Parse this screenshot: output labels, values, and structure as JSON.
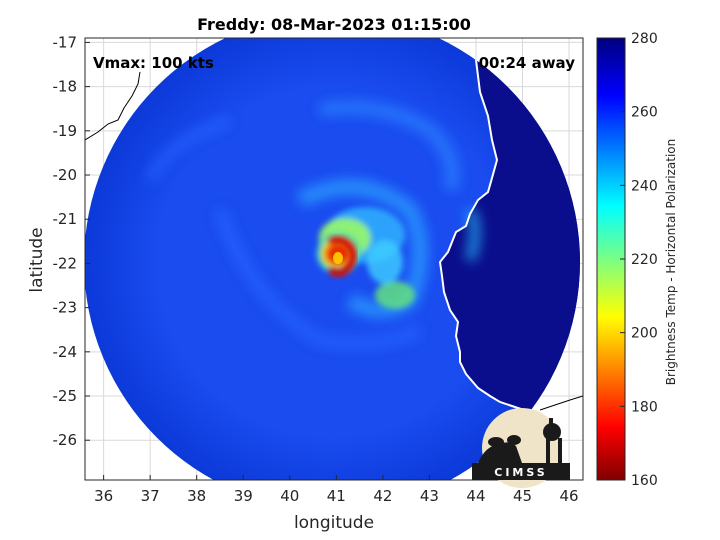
{
  "title": "Freddy: 08-Mar-2023 01:15:00",
  "vmax_label": "Vmax: 100 kts",
  "time_offset_label": "00:24 away",
  "xlabel": "longitude",
  "ylabel": "latitude",
  "x_ticks": [
    "36",
    "37",
    "38",
    "39",
    "40",
    "41",
    "42",
    "43",
    "44",
    "45",
    "46"
  ],
  "y_ticks": [
    "-17",
    "-18",
    "-19",
    "-20",
    "-21",
    "-22",
    "-23",
    "-24",
    "-25",
    "-26"
  ],
  "colorbar": {
    "label": "Brightness Temp - Horizontal Polarization",
    "ticks": [
      "280",
      "260",
      "240",
      "220",
      "200",
      "180",
      "160"
    ],
    "min": 160,
    "max": 280,
    "colormap": "jet"
  },
  "logo_text": "CIMSS",
  "map_extent": {
    "lon": [
      35.6,
      46.3
    ],
    "lat": [
      -26.9,
      -16.9
    ]
  },
  "storm_center": {
    "lon": 41.1,
    "lat": -22.0
  },
  "swath_center": {
    "lon": 41.0,
    "lat": -22.0
  }
}
